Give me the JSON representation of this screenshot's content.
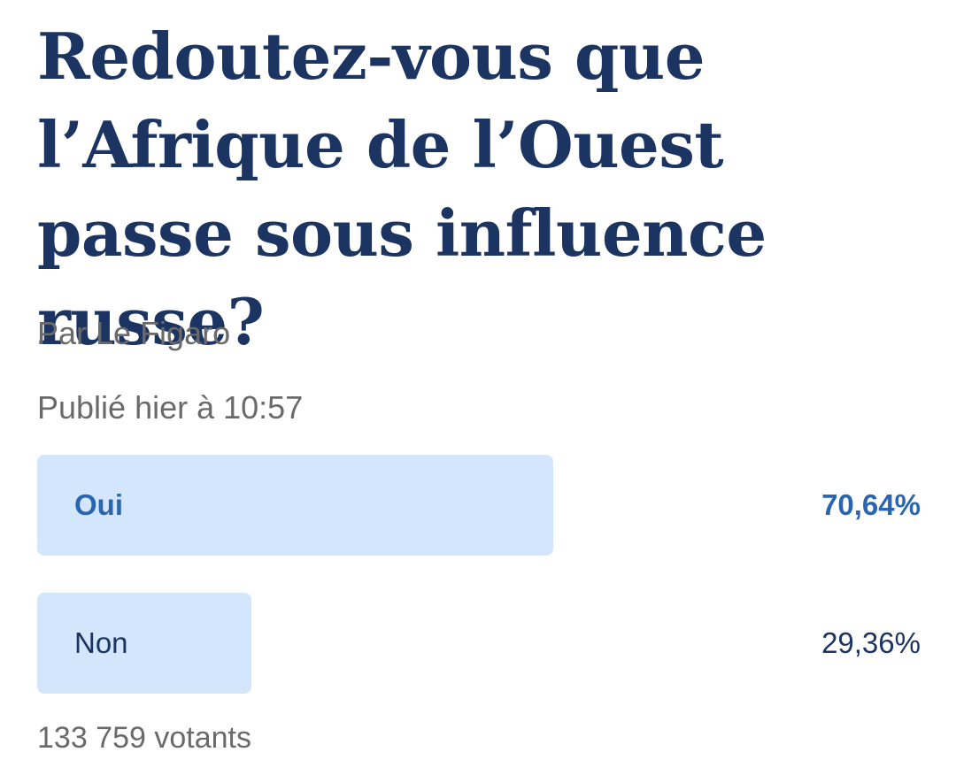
{
  "poll": {
    "question": "Redoutez-vous que l’Afrique de l’Ouest passe sous influence russe?",
    "author": "Par Le Figaro",
    "published": "Publié hier à 10:57",
    "options": [
      {
        "label": "Oui",
        "percent_text": "70,64%",
        "percent": 70.64
      },
      {
        "label": "Non",
        "percent_text": "29,36%",
        "percent": 29.36
      }
    ],
    "voters": "133 759 votants"
  },
  "colors": {
    "bar_fill": "#d3e6fb",
    "title": "#1b3461",
    "accent": "#2a66b0",
    "meta": "#6a6a6a"
  }
}
